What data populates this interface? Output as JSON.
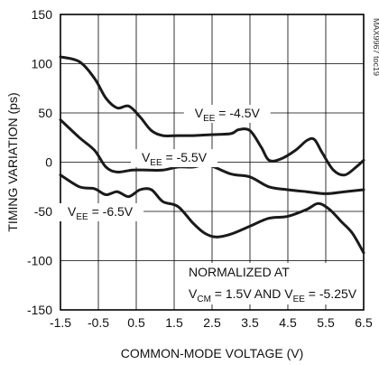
{
  "chart_data": {
    "type": "line",
    "title": "",
    "xlabel": "COMMON-MODE VOLTAGE (V)",
    "ylabel": "TIMING VARIATION (ps)",
    "xlim": [
      -1.5,
      6.5
    ],
    "ylim": [
      -150,
      150
    ],
    "xticks": [
      "-1.5",
      "-0.5",
      "0.5",
      "1.5",
      "2.5",
      "3.5",
      "4.5",
      "5.5",
      "6.5"
    ],
    "yticks": [
      "150",
      "100",
      "50",
      "0",
      "-50",
      "-100",
      "-150"
    ],
    "grid": true,
    "series": [
      {
        "name": "VEE = -4.5V",
        "label": {
          "base": "V",
          "sub": "EE",
          "rest": " = -4.5V"
        },
        "x": [
          -1.5,
          -1.0,
          -0.6,
          -0.3,
          0.0,
          0.3,
          0.6,
          0.9,
          1.2,
          1.6,
          2.0,
          2.5,
          3.0,
          3.2,
          3.5,
          3.8,
          4.0,
          4.3,
          4.7,
          5.0,
          5.2,
          5.4,
          5.7,
          6.0,
          6.3,
          6.5
        ],
        "y": [
          107,
          102,
          85,
          65,
          55,
          57,
          46,
          32,
          27,
          27,
          27,
          28,
          29,
          33,
          32,
          15,
          2,
          3,
          12,
          22,
          23,
          10,
          -8,
          -13,
          -5,
          2
        ]
      },
      {
        "name": "VEE = -5.5V",
        "label": {
          "base": "V",
          "sub": "EE",
          "rest": " = -5.5V"
        },
        "x": [
          -1.5,
          -1.0,
          -0.6,
          -0.3,
          0.0,
          0.4,
          0.8,
          1.2,
          1.6,
          2.0,
          2.4,
          3.0,
          3.5,
          4.0,
          4.5,
          5.0,
          5.5,
          6.0,
          6.5
        ],
        "y": [
          43,
          25,
          12,
          -5,
          -10,
          -8,
          -8,
          -8,
          -5,
          -5,
          -3,
          -12,
          -15,
          -25,
          -28,
          -30,
          -32,
          -30,
          -28
        ]
      },
      {
        "name": "VEE = -6.5V",
        "label": {
          "base": "V",
          "sub": "EE",
          "rest": " = -6.5V"
        },
        "x": [
          -1.5,
          -1.0,
          -0.6,
          -0.3,
          0.0,
          0.3,
          0.6,
          0.9,
          1.2,
          1.6,
          2.0,
          2.3,
          2.6,
          3.0,
          3.5,
          4.0,
          4.5,
          5.0,
          5.3,
          5.6,
          5.9,
          6.2,
          6.5
        ],
        "y": [
          -13,
          -25,
          -27,
          -33,
          -30,
          -35,
          -28,
          -28,
          -40,
          -45,
          -62,
          -72,
          -76,
          -73,
          -65,
          -57,
          -55,
          -48,
          -42,
          -48,
          -60,
          -72,
          -92
        ]
      }
    ],
    "annotations": [
      {
        "text": "NORMALIZED AT"
      },
      {
        "parts": [
          {
            "base": "V",
            "sub": "CM",
            "rest": " = 1.5V AND V"
          },
          {
            "base": "",
            "sub": "EE",
            "rest": " = -5.25V"
          }
        ]
      }
    ],
    "watermark": "MAX9967 toc19"
  }
}
